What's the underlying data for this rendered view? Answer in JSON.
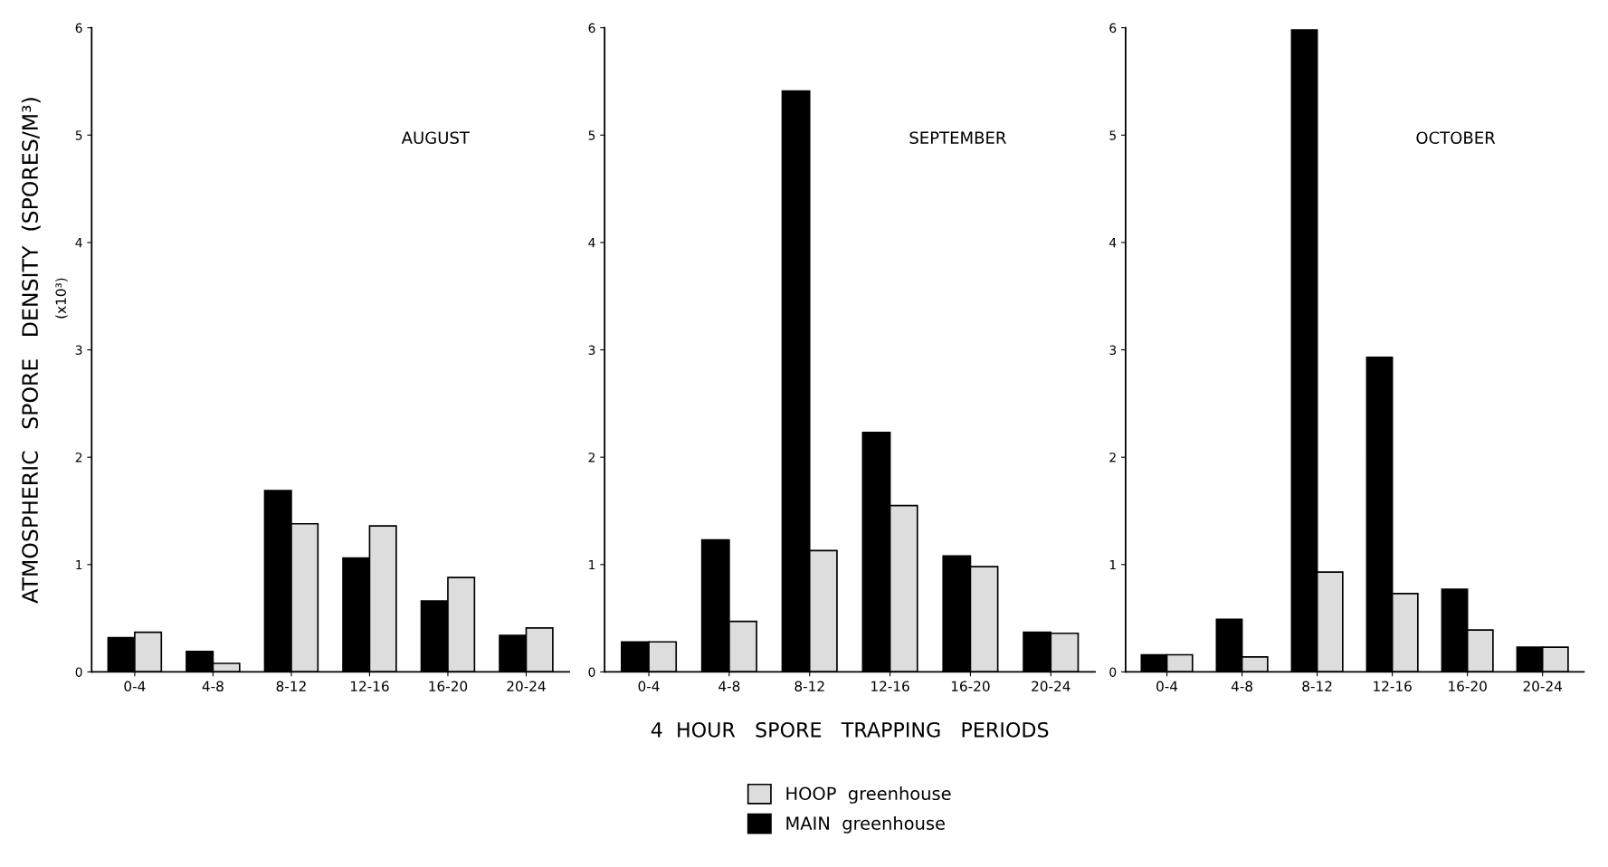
{
  "chart_data": [
    {
      "type": "bar",
      "title": "AUGUST",
      "ylabel": "ATMOSPHERIC   SPORE   DENSITY  (SPORES/M³)",
      "annotations": [
        "(x10³)"
      ],
      "categories": [
        "0-4",
        "4-8",
        "8-12",
        "12-16",
        "16-20",
        "20-24"
      ],
      "ylim": [
        0,
        6
      ],
      "yticks": [
        0,
        1,
        2,
        3,
        4,
        5,
        6
      ],
      "grid": false,
      "legend": false,
      "series": [
        {
          "color": "#000000",
          "values": [
            0.32,
            0.19,
            1.69,
            1.06,
            0.66,
            0.34
          ]
        },
        {
          "color": "#dddddd",
          "values": [
            0.37,
            0.08,
            1.38,
            1.36,
            0.88,
            0.41
          ]
        }
      ]
    },
    {
      "type": "bar",
      "title": "SEPTEMBER",
      "xlabel": "4  HOUR   SPORE   TRAPPING   PERIODS",
      "categories": [
        "0-4",
        "4-8",
        "8-12",
        "12-16",
        "16-20",
        "20-24"
      ],
      "ylim": [
        0,
        6
      ],
      "yticks": [
        0,
        1,
        2,
        3,
        4,
        5,
        6
      ],
      "grid": false,
      "legend": "bottom",
      "series": [
        {
          "name": "MAIN  greenhouse",
          "color": "#000000",
          "values": [
            0.28,
            1.23,
            5.41,
            2.23,
            1.08,
            0.37
          ]
        },
        {
          "name": "HOOP  greenhouse",
          "color": "#dddddd",
          "values": [
            0.28,
            0.47,
            1.13,
            1.55,
            0.98,
            0.36
          ]
        }
      ]
    },
    {
      "type": "bar",
      "title": "OCTOBER",
      "categories": [
        "0-4",
        "4-8",
        "8-12",
        "12-16",
        "16-20",
        "20-24"
      ],
      "ylim": [
        0,
        6
      ],
      "yticks": [
        0,
        1,
        2,
        3,
        4,
        5,
        6
      ],
      "grid": false,
      "legend": false,
      "series": [
        {
          "color": "#000000",
          "values": [
            0.16,
            0.49,
            5.98,
            2.93,
            0.77,
            0.23
          ]
        },
        {
          "color": "#dddddd",
          "values": [
            0.16,
            0.14,
            0.93,
            0.73,
            0.39,
            0.23
          ]
        }
      ]
    }
  ]
}
